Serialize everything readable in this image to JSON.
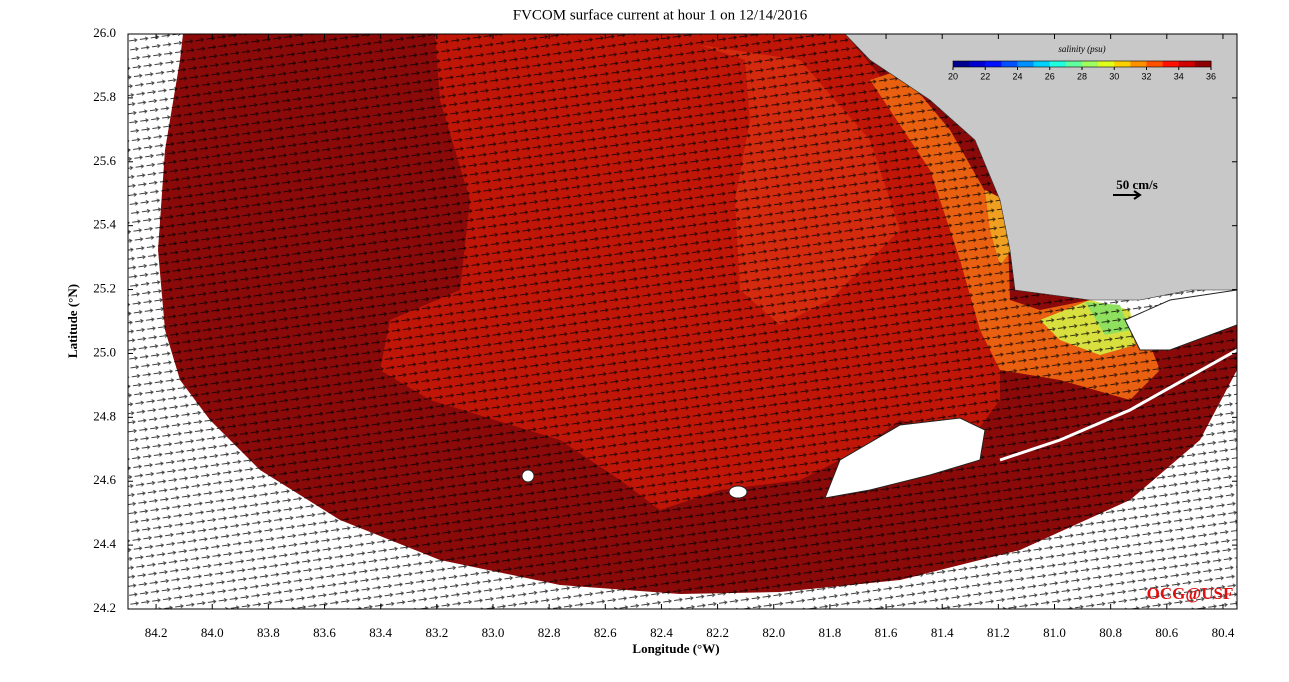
{
  "chart_data": {
    "type": "map",
    "title": "FVCOM surface current at hour 1 on 12/14/2016",
    "x_label": "Longitude (°W)",
    "y_label": "Latitude (°N)",
    "xlim": [
      84.3,
      80.35
    ],
    "ylim": [
      24.2,
      26.0
    ],
    "xticks": [
      84.2,
      {
        "value": 84,
        "label": "84.0"
      },
      83.8,
      83.6,
      83.4,
      83.2,
      {
        "value": 83,
        "label": "83.0"
      },
      82.8,
      82.6,
      82.4,
      82.2,
      {
        "value": 82,
        "label": "82.0"
      },
      81.8,
      81.6,
      81.4,
      81.2,
      {
        "value": 81,
        "label": "81.0"
      },
      80.8,
      80.6,
      80.4
    ],
    "yticks": [
      24.2,
      24.4,
      24.6,
      24.8,
      {
        "value": 25,
        "label": "25.0"
      },
      25.2,
      25.4,
      25.6,
      25.8,
      {
        "value": 26,
        "label": "26.0"
      }
    ],
    "colorbar": {
      "label": "salinity (psu)",
      "lim": [
        20,
        36
      ],
      "ticks": [
        20,
        22,
        24,
        26,
        28,
        30,
        32,
        34,
        36
      ],
      "colors": [
        "#00008f",
        "#0000cf",
        "#0010ff",
        "#0050ff",
        "#0090ff",
        "#00d0ff",
        "#20ffdf",
        "#60ff9f",
        "#9fff60",
        "#dfff20",
        "#ffd000",
        "#ff9000",
        "#ff5000",
        "#ff1000",
        "#cf0000",
        "#8f0000"
      ]
    },
    "scale_label": "50 cm/s",
    "credit": "OCG@USF"
  }
}
